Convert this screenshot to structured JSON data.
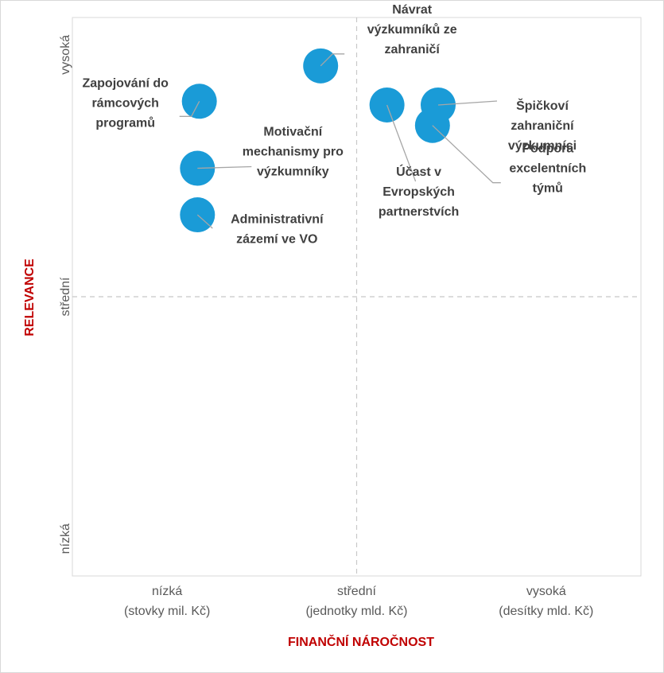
{
  "chart_data": {
    "type": "scatter",
    "xlabel": "FINANČNÍ NÁROČNOST",
    "ylabel": "RELEVANCE",
    "xlim": [
      0,
      3
    ],
    "ylim": [
      0,
      3
    ],
    "grid": false,
    "quadrant_lines": {
      "x": 1.5,
      "y": 1.5
    },
    "x_ticks": [
      {
        "value": 0.5,
        "lines": [
          "nízká",
          "(stovky mil. Kč)"
        ]
      },
      {
        "value": 1.5,
        "lines": [
          "střední",
          "(jednotky mld. Kč)"
        ]
      },
      {
        "value": 2.5,
        "lines": [
          "vysoká",
          "(desítky mld. Kč)"
        ]
      }
    ],
    "y_ticks": [
      {
        "value": 0.2,
        "label": "nízká"
      },
      {
        "value": 1.5,
        "label": "střední"
      },
      {
        "value": 2.8,
        "label": "vysoká"
      }
    ],
    "points": [
      {
        "lines": [
          "Návrat",
          "výzkumníků ze",
          "zahraničí"
        ],
        "x": 1.31,
        "y": 2.74
      },
      {
        "lines": [
          "Zapojování do",
          "rámcových",
          "programů"
        ],
        "x": 0.67,
        "y": 2.55
      },
      {
        "lines": [
          "Špičkoví",
          "zahraniční",
          "výzkumníci"
        ],
        "x": 1.93,
        "y": 2.53
      },
      {
        "lines": [
          "Účast v",
          "Evropských",
          "partnerstvích"
        ],
        "x": 1.66,
        "y": 2.53
      },
      {
        "lines": [
          "Podpora",
          "excelentních",
          "týmů"
        ],
        "x": 1.9,
        "y": 2.42
      },
      {
        "lines": [
          "Motivační",
          "mechanismy pro",
          "výzkumníky"
        ],
        "x": 0.66,
        "y": 2.19
      },
      {
        "lines": [
          "Administrativní",
          "zázemí ve VO"
        ],
        "x": 0.66,
        "y": 1.94
      }
    ]
  },
  "colors": {
    "bubble": "#1a9bd7",
    "axis_title": "#c00000",
    "label_text": "#404040",
    "leader": "#a6a6a6"
  }
}
